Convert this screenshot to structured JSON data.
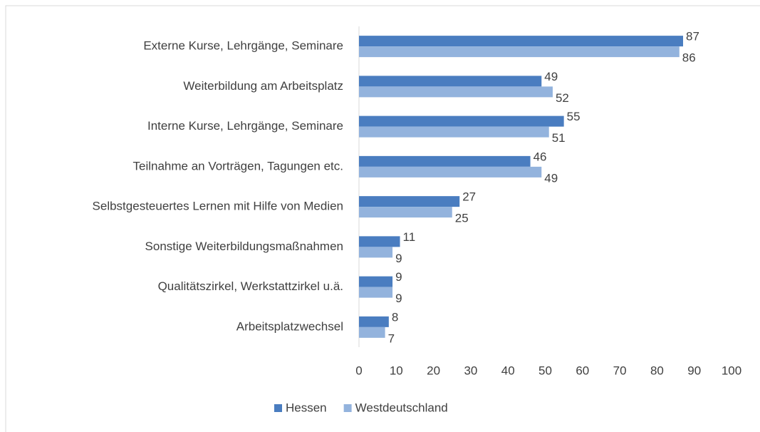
{
  "chart_data": {
    "type": "bar",
    "orientation": "horizontal",
    "categories": [
      "Externe Kurse, Lehrgänge, Seminare",
      "Weiterbildung am Arbeitsplatz",
      "Interne Kurse, Lehrgänge, Seminare",
      "Teilnahme an Vorträgen, Tagungen etc.",
      "Selbstgesteuertes Lernen mit Hilfe von Medien",
      "Sonstige Weiterbildungsmaßnahmen",
      "Qualitätszirkel, Werkstattzirkel u.ä.",
      "Arbeitsplatzwechsel"
    ],
    "series": [
      {
        "name": "Hessen",
        "color": "#4a7dc0",
        "values": [
          87,
          49,
          55,
          46,
          27,
          11,
          9,
          8
        ]
      },
      {
        "name": "Westdeutschland",
        "color": "#93b3dd",
        "values": [
          86,
          52,
          51,
          49,
          25,
          9,
          9,
          7
        ]
      }
    ],
    "xlim": [
      0,
      100
    ],
    "xticks": [
      0,
      10,
      20,
      30,
      40,
      50,
      60,
      70,
      80,
      90,
      100
    ],
    "grid": false,
    "legend": "bottom"
  }
}
